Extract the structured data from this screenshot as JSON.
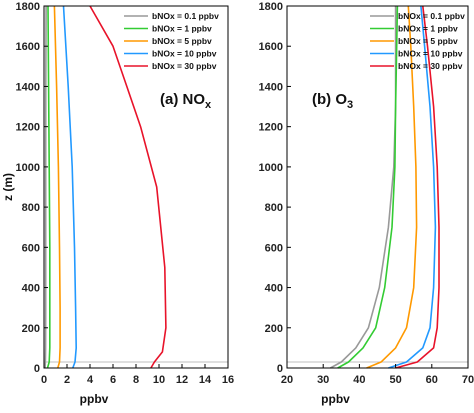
{
  "chart_data": [
    {
      "type": "line",
      "panel_title": "(a) NO",
      "panel_title_sub": "x",
      "xlabel": "ppbv",
      "ylabel": "z (m)",
      "xlim": [
        0,
        16
      ],
      "ylim": [
        0,
        1800
      ],
      "xticks": [
        "0",
        "2",
        "4",
        "6",
        "8",
        "10",
        "12",
        "14",
        "16"
      ],
      "yticks": [
        "0",
        "200",
        "400",
        "600",
        "800",
        "1000",
        "1200",
        "1400",
        "1600",
        "1800"
      ],
      "legend_position": "top-right",
      "reference_line_y": 30,
      "series": [
        {
          "name": "bNOx = 0.1 ppbv",
          "color": "#999999",
          "x": [
            0.1,
            0.12,
            0.14,
            0.15,
            0.15,
            0.15,
            0.16,
            0.18
          ],
          "y": [
            0,
            30,
            100,
            300,
            600,
            1000,
            1400,
            1800
          ]
        },
        {
          "name": "bNOx = 1 ppbv",
          "color": "#33cc33",
          "x": [
            0.3,
            0.45,
            0.5,
            0.5,
            0.5,
            0.45,
            0.4,
            0.35
          ],
          "y": [
            0,
            30,
            100,
            300,
            600,
            1000,
            1400,
            1800
          ]
        },
        {
          "name": "bNOx = 5 ppbv",
          "color": "#ff9900",
          "x": [
            1.2,
            1.35,
            1.4,
            1.4,
            1.35,
            1.25,
            1.1,
            0.9
          ],
          "y": [
            0,
            30,
            100,
            300,
            600,
            1000,
            1400,
            1800
          ]
        },
        {
          "name": "bNOx = 10 ppbv",
          "color": "#2299ff",
          "x": [
            2.5,
            2.7,
            2.8,
            2.75,
            2.65,
            2.45,
            2.1,
            1.7
          ],
          "y": [
            0,
            30,
            100,
            300,
            600,
            1000,
            1400,
            1800
          ]
        },
        {
          "name": "bNOx = 30 ppbv",
          "color": "#e8132a",
          "x": [
            9.3,
            9.6,
            10.3,
            10.6,
            10.5,
            9.8,
            8.4,
            7.2,
            6.0,
            4.0
          ],
          "y": [
            0,
            30,
            80,
            200,
            500,
            900,
            1200,
            1400,
            1600,
            1800
          ]
        }
      ]
    },
    {
      "type": "line",
      "panel_title": "(b) O",
      "panel_title_sub": "3",
      "xlabel": "ppbv",
      "ylabel": "",
      "xlim": [
        20,
        70
      ],
      "ylim": [
        0,
        1800
      ],
      "xticks": [
        "20",
        "30",
        "40",
        "50",
        "60",
        "70"
      ],
      "yticks": [
        "0",
        "200",
        "400",
        "600",
        "800",
        "1000",
        "1200",
        "1400",
        "1600",
        "1800"
      ],
      "legend_position": "top-right",
      "reference_line_y": 30,
      "series": [
        {
          "name": "bNOx = 0.1 ppbv",
          "color": "#999999",
          "x": [
            32,
            35,
            39,
            42.5,
            45.5,
            48,
            49.5,
            50,
            50,
            50
          ],
          "y": [
            0,
            30,
            100,
            200,
            400,
            700,
            1000,
            1300,
            1600,
            1800
          ]
        },
        {
          "name": "bNOx = 1 ppbv",
          "color": "#33cc33",
          "x": [
            34,
            37,
            41,
            44.5,
            47,
            49,
            49.8,
            50,
            50.3,
            50.5
          ],
          "y": [
            0,
            30,
            100,
            200,
            400,
            700,
            1000,
            1300,
            1600,
            1800
          ]
        },
        {
          "name": "bNOx = 5 ppbv",
          "color": "#ff9900",
          "x": [
            42,
            46,
            50,
            53,
            55,
            55.8,
            55.6,
            55,
            54.2,
            53.5
          ],
          "y": [
            0,
            30,
            100,
            200,
            400,
            700,
            1000,
            1300,
            1600,
            1800
          ]
        },
        {
          "name": "bNOx = 10 ppbv",
          "color": "#2299ff",
          "x": [
            48,
            53,
            57.5,
            59.5,
            60.5,
            61,
            60.5,
            59.5,
            58,
            57
          ],
          "y": [
            0,
            30,
            100,
            200,
            400,
            700,
            1000,
            1300,
            1600,
            1800
          ]
        },
        {
          "name": "bNOx = 30 ppbv",
          "color": "#e8132a",
          "x": [
            50,
            56,
            60.5,
            61.5,
            62,
            62,
            61.5,
            60.5,
            58.8,
            57.5
          ],
          "y": [
            0,
            30,
            100,
            200,
            400,
            700,
            1000,
            1300,
            1600,
            1800
          ]
        }
      ]
    }
  ]
}
